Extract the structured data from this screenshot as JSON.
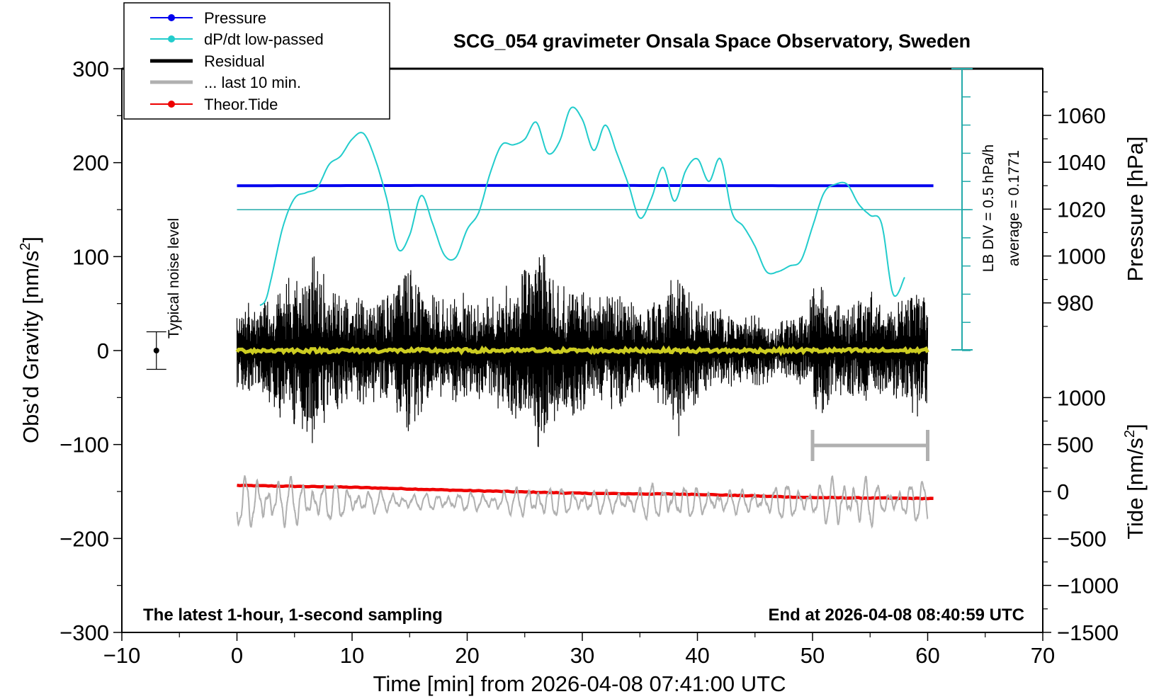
{
  "chart_data": {
    "type": "line",
    "title": "SCG_054 gravimeter Onsala Space Observatory, Sweden",
    "xlabel": "Time [min] from 2026-04-08 07:41:00 UTC",
    "xlim": [
      -10,
      70
    ],
    "xticks": [
      -10,
      0,
      10,
      20,
      30,
      40,
      50,
      60,
      70
    ],
    "xtick_labels": [
      "−10",
      "0",
      "10",
      "20",
      "30",
      "40",
      "50",
      "60",
      "70"
    ],
    "left_axis": {
      "label": "Obs’d Gravity [nm/s",
      "label_sup": "2",
      "label_end": "]",
      "lim": [
        -300,
        300
      ],
      "ticks": [
        -300,
        -200,
        -100,
        0,
        100,
        200,
        300
      ],
      "tick_labels": [
        "−300",
        "−200",
        "−100",
        "0",
        "100",
        "200",
        "300"
      ]
    },
    "pressure_axis": {
      "label": "Pressure [hPa]",
      "ticks": [
        980,
        1000,
        1020,
        1040,
        1060
      ],
      "tick_labels": [
        "980",
        "1000",
        "1020",
        "1040",
        "1060"
      ]
    },
    "tide_axis": {
      "label": "Tide [nm/s",
      "label_sup": "2",
      "label_end": "]",
      "ticks": [
        -1500,
        -1000,
        -500,
        0,
        500,
        1000
      ],
      "tick_labels": [
        "−1500",
        "−1000",
        "−500",
        "0",
        "500",
        "1000"
      ]
    },
    "legend": {
      "placement": "top-left",
      "entries": [
        {
          "label": "Pressure",
          "color": "#0000ee",
          "style": "line-dot"
        },
        {
          "label": "dP/dt low-passed",
          "color": "#22cccc",
          "style": "line-dot"
        },
        {
          "label": "Residual",
          "color": "#000000",
          "style": "thick"
        },
        {
          "label": "... last 10 min.",
          "color": "#b0b0b0",
          "style": "thick"
        },
        {
          "label": "Theor.Tide",
          "color": "#ee0000",
          "style": "line-dot"
        }
      ]
    },
    "annotations": {
      "bottom_left": "The latest 1-hour, 1-second sampling",
      "bottom_right": "End at 2026-04-08 08:40:59 UTC",
      "noise_label": "Typical noise level",
      "lb_div": "LB DIV = 0.5 hPa/h",
      "average": "average = 0.1771"
    },
    "series": [
      {
        "name": "Pressure",
        "axis": "pressure",
        "color": "#0000ee",
        "x": [
          0,
          10,
          20,
          30,
          40,
          50,
          60.5
        ],
        "y": [
          1030.0,
          1030.05,
          1030.1,
          1030.1,
          1030.05,
          1030.0,
          1030.0
        ]
      },
      {
        "name": "dP/dt low-passed",
        "axis": "dpdt_div",
        "color": "#22cccc",
        "x": [
          2,
          2.5,
          3,
          4,
          5,
          6,
          7,
          8,
          9,
          10,
          11,
          12,
          13,
          14,
          15,
          16,
          17,
          18,
          19,
          20,
          21,
          22,
          23,
          24,
          25,
          26,
          27,
          28,
          29,
          30,
          31,
          32,
          33,
          34,
          35,
          36,
          37,
          38,
          39,
          40,
          41,
          42,
          43,
          44,
          45,
          46,
          47,
          48,
          49,
          50,
          51,
          52,
          53,
          54,
          55,
          56,
          57,
          58
        ],
        "y": [
          -3.4,
          -3.2,
          -2.4,
          -0.6,
          0.4,
          0.6,
          0.8,
          1.6,
          1.9,
          2.5,
          2.7,
          1.8,
          0.4,
          -1.4,
          -0.9,
          0.5,
          -0.5,
          -1.6,
          -1.7,
          -0.7,
          -0.1,
          1.3,
          2.3,
          2.3,
          2.5,
          3.1,
          2.0,
          2.4,
          3.6,
          3.2,
          2.1,
          3.0,
          2.0,
          0.9,
          -0.3,
          0.4,
          1.5,
          0.3,
          1.4,
          1.8,
          1.0,
          1.8,
          -0.1,
          -0.6,
          -1.3,
          -2.2,
          -2.2,
          -2.0,
          -1.8,
          -0.6,
          0.6,
          0.9,
          0.9,
          0.2,
          -0.2,
          -0.5,
          -3.0,
          -2.4
        ]
      },
      {
        "name": "Residual",
        "axis": "gravity",
        "color": "#000000",
        "x_range": [
          0,
          60
        ],
        "envelope_x": [
          0,
          1,
          2,
          3,
          4,
          5,
          6,
          6.7,
          7,
          8,
          9,
          10,
          11,
          12,
          13,
          14,
          15,
          16,
          17,
          18,
          19,
          20,
          21,
          22,
          23,
          24,
          25,
          26,
          26.5,
          27,
          28,
          29,
          30,
          31,
          32,
          33,
          34,
          35,
          36,
          37,
          38,
          38.5,
          39,
          40,
          41,
          42,
          43,
          44,
          45,
          46,
          47,
          48,
          49,
          49.5,
          50,
          51,
          52,
          53,
          54,
          55,
          56,
          57,
          58,
          59,
          60
        ],
        "envelope_y": [
          40,
          55,
          45,
          60,
          75,
          80,
          90,
          115,
          95,
          70,
          60,
          55,
          60,
          55,
          60,
          70,
          90,
          70,
          60,
          55,
          60,
          65,
          55,
          60,
          65,
          75,
          90,
          105,
          110,
          100,
          80,
          70,
          65,
          55,
          60,
          65,
          55,
          45,
          50,
          60,
          90,
          95,
          70,
          55,
          45,
          50,
          40,
          35,
          40,
          35,
          30,
          35,
          40,
          35,
          75,
          70,
          55,
          45,
          55,
          65,
          55,
          50,
          60,
          75,
          60
        ]
      },
      {
        "name": "... last 10 min.",
        "axis": "gravity",
        "color": "#b0b0b0",
        "x_range": [
          50,
          60
        ]
      },
      {
        "name": "Last 10 min. (bottom panel, ×4 amplified)",
        "axis": "tide",
        "color": "#b0b0b0",
        "envelope_x": [
          0,
          2,
          4,
          6,
          8,
          10,
          12,
          14,
          16,
          18,
          20,
          22,
          24,
          26,
          28,
          30,
          32,
          34,
          36,
          38,
          40,
          42,
          44,
          46,
          48,
          50,
          52,
          53,
          54,
          55,
          56,
          58,
          60
        ],
        "envelope_y": [
          1.0,
          1.0,
          0.95,
          0.9,
          0.8,
          0.6,
          0.45,
          0.35,
          0.3,
          0.4,
          0.35,
          0.4,
          0.5,
          0.75,
          0.55,
          0.5,
          0.45,
          0.5,
          0.7,
          0.8,
          0.55,
          0.5,
          0.45,
          0.55,
          0.75,
          0.6,
          1.0,
          1.0,
          1.0,
          1.0,
          0.5,
          0.7,
          0.9
        ]
      },
      {
        "name": "Theor.Tide",
        "axis": "tide",
        "color": "#ee0000",
        "x": [
          0,
          10,
          20,
          30,
          40,
          50,
          60.5
        ],
        "y": [
          65,
          45,
          10,
          -20,
          -30,
          -65,
          -75
        ]
      },
      {
        "name": "Trend",
        "axis": "gravity",
        "color": "#cccc22",
        "x_range": [
          0,
          60
        ],
        "y": 0
      }
    ],
    "noise_level": {
      "x": -7,
      "y": 0,
      "err": 20
    },
    "last10_bar": {
      "x0": 50,
      "x1": 60,
      "y": -101
    }
  }
}
